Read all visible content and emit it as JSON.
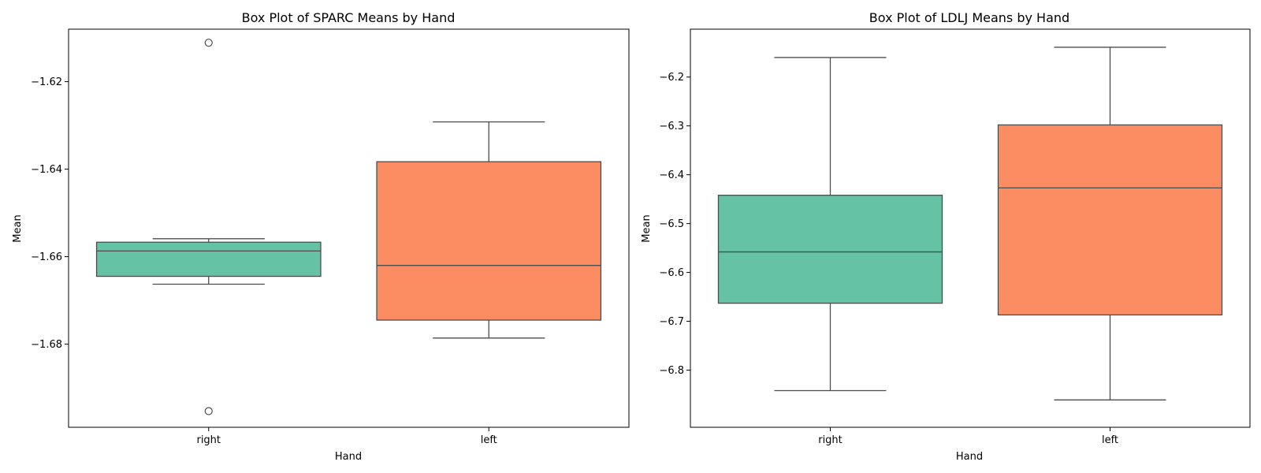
{
  "chart_data": [
    {
      "type": "box",
      "title": "Box Plot of SPARC Means by Hand",
      "xlabel": "Hand",
      "ylabel": "Mean",
      "categories": [
        "right",
        "left"
      ],
      "ylim": [
        -1.699,
        -1.608
      ],
      "yticks": [
        -1.62,
        -1.64,
        -1.66,
        -1.68
      ],
      "yticklabels": [
        "−1.62",
        "−1.64",
        "−1.66",
        "−1.68"
      ],
      "grid": false,
      "colors": [
        "#66c2a5",
        "#fc8d62"
      ],
      "boxes": [
        {
          "category": "right",
          "whislo": -1.6663,
          "q1": -1.6645,
          "med": -1.6587,
          "q3": -1.6567,
          "whishi": -1.6559,
          "fliers": [
            -1.6111,
            -1.6953
          ]
        },
        {
          "category": "left",
          "whislo": -1.6786,
          "q1": -1.6745,
          "med": -1.662,
          "q3": -1.6383,
          "whishi": -1.6292,
          "fliers": []
        }
      ]
    },
    {
      "type": "box",
      "title": "Box Plot of LDLJ Means by Hand",
      "xlabel": "Hand",
      "ylabel": "Mean",
      "categories": [
        "right",
        "left"
      ],
      "ylim": [
        -6.917,
        -6.102
      ],
      "yticks": [
        -6.2,
        -6.3,
        -6.4,
        -6.5,
        -6.6,
        -6.7,
        -6.8
      ],
      "yticklabels": [
        "−6.2",
        "−6.3",
        "−6.4",
        "−6.5",
        "−6.6",
        "−6.7",
        "−6.8"
      ],
      "grid": false,
      "colors": [
        "#66c2a5",
        "#fc8d62"
      ],
      "boxes": [
        {
          "category": "right",
          "whislo": -6.842,
          "q1": -6.663,
          "med": -6.558,
          "q3": -6.442,
          "whishi": -6.16,
          "fliers": []
        },
        {
          "category": "left",
          "whislo": -6.861,
          "q1": -6.687,
          "med": -6.427,
          "q3": -6.298,
          "whishi": -6.139,
          "fliers": []
        }
      ]
    }
  ]
}
